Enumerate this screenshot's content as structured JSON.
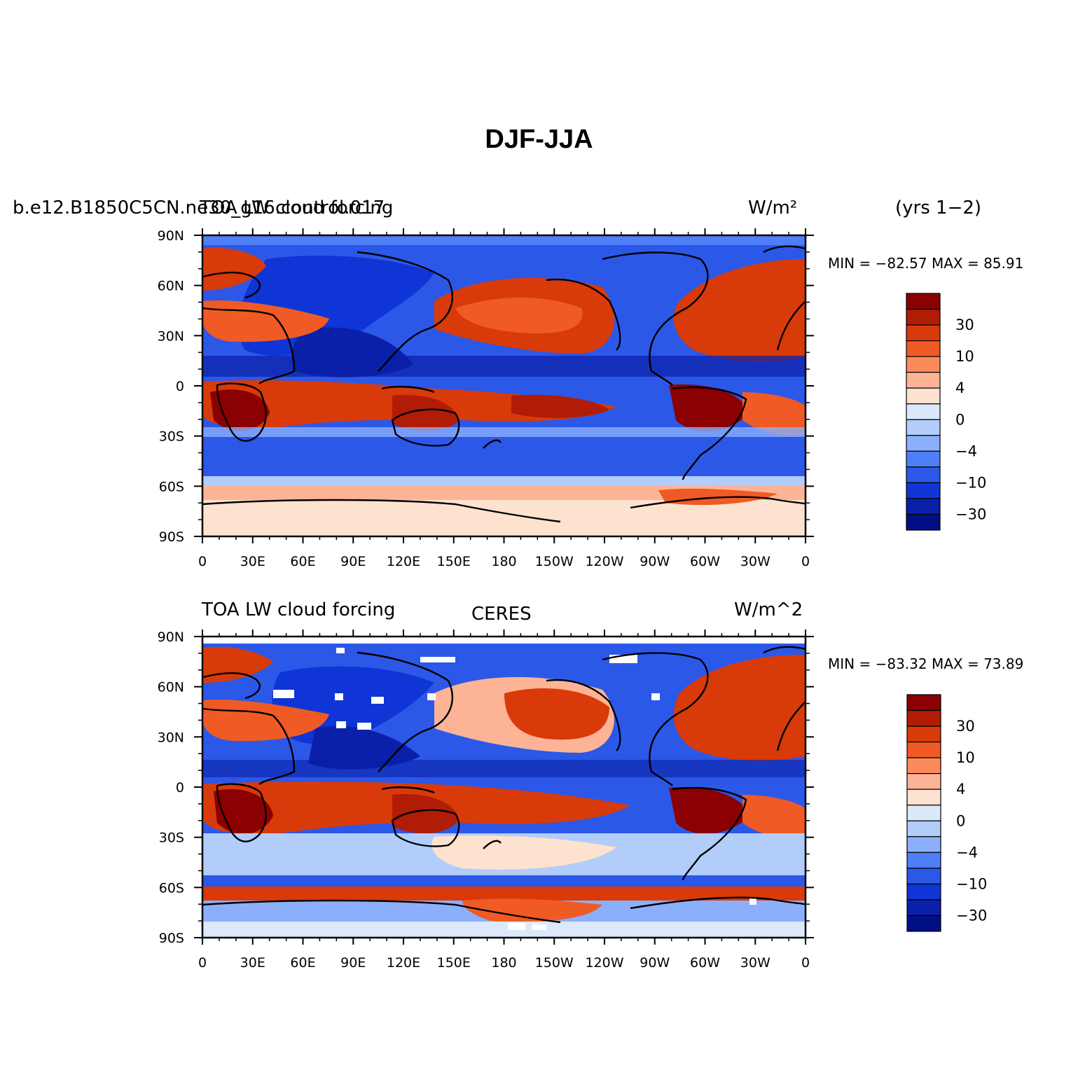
{
  "title": "DJF-JJA",
  "panels": [
    {
      "left_title": "b.e12.B1850C5CN.ne30_g16.control.017",
      "overlay_title": "TOA LW cloud forcing",
      "center_title": "",
      "units": "W/m²",
      "period": "(yrs 1−2)",
      "stats": "MIN = −82.57 MAX =  85.91",
      "min": -82.57,
      "max": 85.91
    },
    {
      "left_title": "TOA LW cloud forcing",
      "overlay_title": "",
      "center_title": "CERES",
      "units": "W/m^2",
      "period": "",
      "stats": "MIN = −83.32 MAX =  73.89",
      "min": -83.32,
      "max": 73.89
    }
  ],
  "axes": {
    "lon_ticks": [
      "0",
      "30E",
      "60E",
      "90E",
      "120E",
      "150E",
      "180",
      "150W",
      "120W",
      "90W",
      "60W",
      "30W",
      "0"
    ],
    "lat_ticks": [
      "90N",
      "60N",
      "30N",
      "0",
      "30S",
      "60S",
      "90S"
    ]
  },
  "colorbar": {
    "labels": [
      "30",
      "10",
      "4",
      "0",
      "−4",
      "−10",
      "−30"
    ],
    "colors": [
      "#8b0000",
      "#b01c05",
      "#d83a0a",
      "#f05a24",
      "#fb8b5c",
      "#fdb396",
      "#fde2cf",
      "#dbe9fb",
      "#b3cdfb",
      "#8caffc",
      "#4f7ff8",
      "#2c58e8",
      "#0f35d6",
      "#0a20a8",
      "#000f85"
    ]
  }
}
